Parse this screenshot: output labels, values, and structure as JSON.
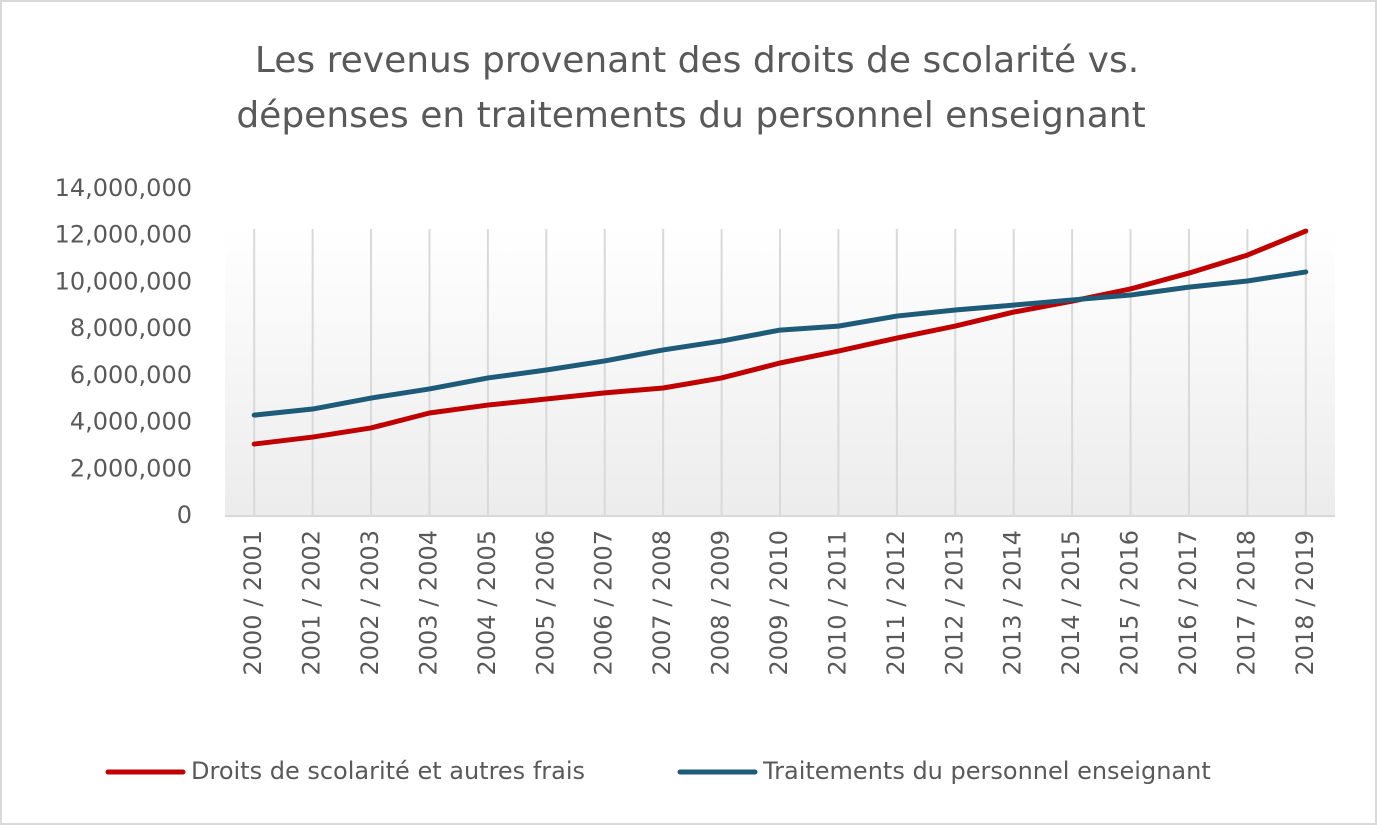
{
  "chart_data": {
    "type": "line",
    "title": "Les revenus provenant des droits de scolarité vs.",
    "subtitle": "dépenses en traitements du personnel enseignant",
    "categories": [
      "2000 / 2001",
      "2001 / 2002",
      "2002 / 2003",
      "2003 / 2004",
      "2004 / 2005",
      "2005 / 2006",
      "2006 / 2007",
      "2007 / 2008",
      "2008 / 2009",
      "2009 / 2010",
      "2010 / 2011",
      "2011 / 2012",
      "2012 / 2013",
      "2013 / 2014",
      "2014 / 2015",
      "2015 / 2016",
      "2016 / 2017",
      "2017 / 2018",
      "2018 / 2019"
    ],
    "series": [
      {
        "name": "Droits de scolarité et autres frais",
        "color": "#c00000",
        "values": [
          3080000,
          3380000,
          3770000,
          4410000,
          4750000,
          5010000,
          5270000,
          5480000,
          5910000,
          6550000,
          7060000,
          7620000,
          8130000,
          8730000,
          9200000,
          9720000,
          10400000,
          11170000,
          12200000
        ]
      },
      {
        "name": "Traitements du personnel enseignant",
        "color": "#1d5b78",
        "values": [
          4320000,
          4580000,
          5050000,
          5440000,
          5910000,
          6250000,
          6640000,
          7110000,
          7490000,
          7960000,
          8130000,
          8560000,
          8820000,
          9030000,
          9250000,
          9460000,
          9800000,
          10060000,
          10450000
        ]
      }
    ],
    "ylim": [
      0,
      14000000
    ],
    "yticks": [
      0,
      {
        "value": 2000000,
        "label": "2,000,000"
      },
      {
        "value": 4000000,
        "label": "4,000,000"
      },
      {
        "value": 6000000,
        "label": "6,000,000"
      },
      {
        "value": 8000000,
        "label": "8,000,000"
      },
      {
        "value": 10000000,
        "label": "10,000,000"
      },
      {
        "value": 12000000,
        "label": "12,000,000"
      },
      {
        "value": 14000000,
        "label": "14,000,000"
      }
    ],
    "legend": "bottom"
  }
}
